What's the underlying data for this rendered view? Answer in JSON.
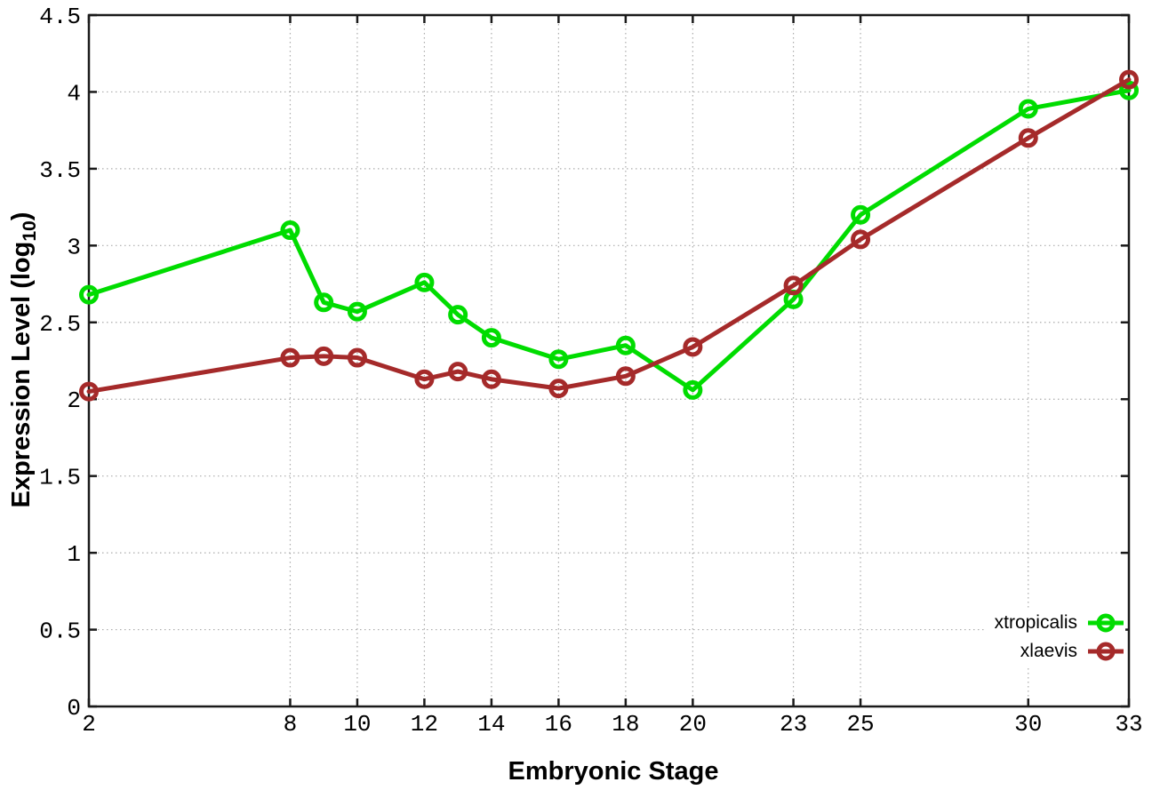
{
  "chart_data": {
    "type": "line",
    "title": "",
    "xlabel": "Embryonic Stage",
    "ylabel": "Expression Level (log10)",
    "ylabel_parts": {
      "main": "Expression Level (log",
      "sub": "10",
      "end": ")"
    },
    "xlim": [
      2,
      33
    ],
    "ylim": [
      0,
      4.5
    ],
    "grid": true,
    "legend_position": "bottom-right",
    "marker": "open-circle",
    "x": [
      2,
      8,
      9,
      10,
      12,
      13,
      14,
      16,
      18,
      20,
      23,
      25,
      30,
      33
    ],
    "series": [
      {
        "name": "xtropicalis",
        "color": "#00DC00",
        "values": [
          2.68,
          3.1,
          2.63,
          2.57,
          2.76,
          2.55,
          2.4,
          2.26,
          2.35,
          2.06,
          2.65,
          3.2,
          3.89,
          4.01
        ]
      },
      {
        "name": "xlaevis",
        "color": "#A52A2A",
        "values": [
          2.05,
          2.27,
          2.28,
          2.27,
          2.13,
          2.18,
          2.13,
          2.07,
          2.15,
          2.34,
          2.74,
          3.04,
          3.7,
          4.08
        ]
      }
    ],
    "xticks": [
      2,
      8,
      10,
      12,
      14,
      16,
      18,
      20,
      23,
      25,
      30,
      33
    ],
    "xtick_labels": [
      "2",
      "8",
      "10",
      "12",
      "14",
      "16",
      "18",
      "20",
      "23",
      "25",
      "30",
      "33"
    ],
    "yticks": [
      0,
      0.5,
      1,
      1.5,
      2,
      2.5,
      3,
      3.5,
      4,
      4.5
    ],
    "ytick_labels": [
      "0",
      "0.5",
      "1",
      "1.5",
      "2",
      "2.5",
      "3",
      "3.5",
      "4",
      "4.5"
    ],
    "colors": {
      "background": "#FFFFFF",
      "axis": "#1A1A1A",
      "grid": "#ABABAB",
      "text": "#000000"
    }
  }
}
